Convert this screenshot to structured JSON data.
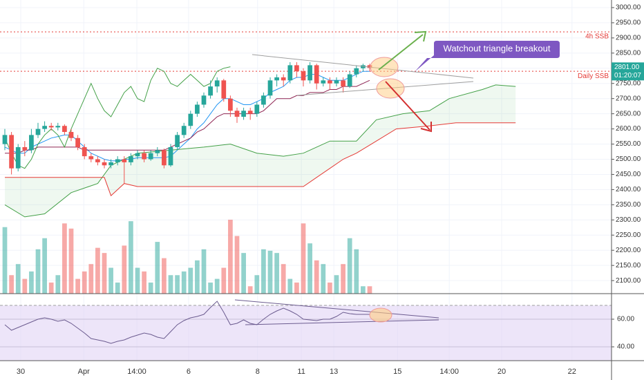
{
  "chart_data": [
    {
      "type": "candlestick",
      "up_color": "#26a69a",
      "down_color": "#ef5350",
      "xlim": [
        -0.73,
        91.46
      ],
      "xticks": [
        {
          "value": 2.4,
          "label": "30"
        },
        {
          "value": 11.9,
          "label": "Apr"
        },
        {
          "value": 19.9,
          "label": "14:00"
        },
        {
          "value": 27.7,
          "label": "6"
        },
        {
          "value": 38.1,
          "label": "8"
        },
        {
          "value": 44.7,
          "label": "11"
        },
        {
          "value": 49.6,
          "label": "13"
        },
        {
          "value": 59.2,
          "label": "15"
        },
        {
          "value": 67,
          "label": "14:00"
        },
        {
          "value": 74.9,
          "label": "20"
        },
        {
          "value": 85.5,
          "label": "22"
        }
      ],
      "ylim": [
        2057,
        3025
      ],
      "yticks": [
        {
          "value": 3000,
          "label": "3000.00"
        },
        {
          "value": 2950,
          "label": "2950.00"
        },
        {
          "value": 2900,
          "label": "2900.00"
        },
        {
          "value": 2850,
          "label": "2850.00"
        },
        {
          "value": 2800,
          "label": "2800.00"
        },
        {
          "value": 2750,
          "label": "2750.00"
        },
        {
          "value": 2700,
          "label": "2700.00"
        },
        {
          "value": 2650,
          "label": "2650.00"
        },
        {
          "value": 2600,
          "label": "2600.00"
        },
        {
          "value": 2550,
          "label": "2550.00"
        },
        {
          "value": 2500,
          "label": "2500.00"
        },
        {
          "value": 2450,
          "label": "2450.00"
        },
        {
          "value": 2400,
          "label": "2400.00"
        },
        {
          "value": 2350,
          "label": "2350.00"
        },
        {
          "value": 2300,
          "label": "2300.00"
        },
        {
          "value": 2250,
          "label": "2250.00"
        },
        {
          "value": 2200,
          "label": "2200.00"
        },
        {
          "value": 2150,
          "label": "2150.00"
        },
        {
          "value": 2100,
          "label": "2100.00"
        }
      ],
      "grid": true,
      "ohlc": [
        [
          2550,
          2600,
          2530,
          2580
        ],
        [
          2580,
          2590,
          2450,
          2470
        ],
        [
          2470,
          2550,
          2460,
          2540
        ],
        [
          2540,
          2560,
          2510,
          2530
        ],
        [
          2530,
          2600,
          2520,
          2580
        ],
        [
          2580,
          2620,
          2570,
          2600
        ],
        [
          2600,
          2625,
          2590,
          2610
        ],
        [
          2610,
          2620,
          2595,
          2605
        ],
        [
          2605,
          2620,
          2595,
          2610
        ],
        [
          2610,
          2615,
          2580,
          2590
        ],
        [
          2590,
          2600,
          2560,
          2570
        ],
        [
          2570,
          2580,
          2530,
          2540
        ],
        [
          2540,
          2550,
          2500,
          2510
        ],
        [
          2510,
          2520,
          2490,
          2500
        ],
        [
          2500,
          2510,
          2480,
          2490
        ],
        [
          2490,
          2500,
          2470,
          2480
        ],
        [
          2480,
          2500,
          2470,
          2490
        ],
        [
          2490,
          2510,
          2480,
          2500
        ],
        [
          2500,
          2510,
          2420,
          2490
        ],
        [
          2490,
          2520,
          2480,
          2510
        ],
        [
          2510,
          2530,
          2500,
          2520
        ],
        [
          2520,
          2530,
          2490,
          2500
        ],
        [
          2500,
          2530,
          2495,
          2520
        ],
        [
          2520,
          2540,
          2510,
          2530
        ],
        [
          2530,
          2535,
          2470,
          2480
        ],
        [
          2480,
          2550,
          2475,
          2540
        ],
        [
          2540,
          2590,
          2530,
          2580
        ],
        [
          2580,
          2620,
          2570,
          2610
        ],
        [
          2610,
          2660,
          2600,
          2650
        ],
        [
          2650,
          2690,
          2640,
          2680
        ],
        [
          2680,
          2720,
          2670,
          2710
        ],
        [
          2710,
          2760,
          2700,
          2740
        ],
        [
          2740,
          2770,
          2720,
          2760
        ],
        [
          2760,
          2765,
          2690,
          2700
        ],
        [
          2700,
          2710,
          2640,
          2660
        ],
        [
          2660,
          2670,
          2620,
          2640
        ],
        [
          2640,
          2670,
          2630,
          2660
        ],
        [
          2660,
          2670,
          2630,
          2650
        ],
        [
          2650,
          2690,
          2640,
          2680
        ],
        [
          2680,
          2720,
          2670,
          2710
        ],
        [
          2710,
          2770,
          2700,
          2760
        ],
        [
          2760,
          2780,
          2740,
          2770
        ],
        [
          2770,
          2780,
          2740,
          2760
        ],
        [
          2760,
          2820,
          2750,
          2810
        ],
        [
          2810,
          2820,
          2770,
          2790
        ],
        [
          2790,
          2800,
          2740,
          2760
        ],
        [
          2760,
          2820,
          2750,
          2810
        ],
        [
          2810,
          2815,
          2730,
          2750
        ],
        [
          2750,
          2770,
          2740,
          2760
        ],
        [
          2760,
          2770,
          2730,
          2750
        ],
        [
          2750,
          2770,
          2740,
          2760
        ],
        [
          2760,
          2770,
          2720,
          2740
        ],
        [
          2740,
          2790,
          2735,
          2780
        ],
        [
          2780,
          2810,
          2770,
          2800
        ],
        [
          2800,
          2815,
          2790,
          2810
        ],
        [
          2810,
          2815,
          2790,
          2801
        ]
      ],
      "volume": [
        90,
        25,
        40,
        20,
        30,
        60,
        75,
        15,
        25,
        95,
        88,
        20,
        30,
        40,
        62,
        55,
        35,
        15,
        65,
        98,
        35,
        30,
        15,
        70,
        48,
        25,
        25,
        30,
        35,
        45,
        60,
        15,
        20,
        35,
        100,
        78,
        55,
        10,
        25,
        60,
        58,
        55,
        40,
        20,
        15,
        95,
        68,
        45,
        40,
        15,
        25,
        40,
        75,
        60,
        10,
        10
      ],
      "volume_ylim": [
        0,
        100
      ],
      "series": [
        {
          "color": "#2196f3",
          "values": [
            2540,
            2530,
            2520,
            2520,
            2540,
            2550,
            2560,
            2570,
            2575,
            2580,
            2580,
            2560,
            2540,
            2520,
            2510,
            2500,
            2495,
            2495,
            2500,
            2500,
            2505,
            2505,
            2505,
            2505,
            2505,
            2510,
            2530,
            2550,
            2570,
            2600,
            2620,
            2650,
            2680,
            2700,
            2700,
            2690,
            2680,
            2680,
            2690,
            2700,
            2720,
            2730,
            2740,
            2760,
            2770,
            2770,
            2780,
            2780,
            2770,
            2760,
            2760,
            2760,
            2770,
            2780,
            2790,
            2790
          ]
        },
        {
          "color": "#8e2452",
          "values": [
            2520,
            2520,
            2520,
            2530,
            2530,
            2540,
            2540,
            2540,
            2540,
            2540,
            2540,
            2540,
            2530,
            2530,
            2530,
            2530,
            2530,
            2530,
            2530,
            2530,
            2530,
            2530,
            2530,
            2530,
            2530,
            2540,
            2550,
            2560,
            2570,
            2590,
            2600,
            2620,
            2640,
            2650,
            2650,
            2650,
            2650,
            2650,
            2650,
            2660,
            2680,
            2700,
            2700,
            2700,
            2710,
            2710,
            2720,
            2720,
            2720,
            2730,
            2730,
            2740,
            2740,
            2740,
            2750,
            2760
          ]
        },
        {
          "color": "#43a047",
          "values": [
            2570,
            2520,
            2480,
            2470,
            2500,
            2550,
            2580,
            2600,
            2580,
            2540,
            2600,
            2650,
            2700,
            2750,
            2700,
            2660,
            2640,
            2680,
            2720,
            2740,
            2700,
            2690,
            2760,
            2800,
            2790,
            2750,
            2740,
            2760,
            2780,
            2760,
            2740,
            2750,
            2790,
            2800,
            2805
          ]
        },
        {
          "color": "#43a047",
          "x": [
            0,
            3,
            6,
            10,
            14,
            16,
            20,
            25,
            30,
            34,
            38,
            42,
            45,
            47,
            49,
            53,
            56,
            60,
            64,
            67,
            72,
            74,
            77
          ],
          "values": [
            2350,
            2310,
            2320,
            2390,
            2420,
            2480,
            2520,
            2530,
            2540,
            2550,
            2520,
            2510,
            2520,
            2540,
            2560,
            2560,
            2630,
            2650,
            2660,
            2700,
            2730,
            2745,
            2740
          ]
        },
        {
          "color": "#e53935",
          "x": [
            0,
            15,
            16,
            18,
            20,
            30,
            45,
            47,
            49,
            51,
            53,
            56,
            59,
            64,
            68,
            77
          ],
          "values": [
            2440,
            2440,
            2380,
            2420,
            2410,
            2410,
            2410,
            2440,
            2470,
            2500,
            2520,
            2560,
            2600,
            2610,
            2620,
            2620
          ]
        }
      ],
      "levels": [
        {
          "label": "4h SSB",
          "value": 2920,
          "color": "#e53935"
        },
        {
          "label": "Daily SSB",
          "value": 2790,
          "color": "#e53935"
        }
      ],
      "last_price": {
        "value": 2801,
        "label": "2801.00"
      },
      "countdown": "01:20:07",
      "annotation": "Watchout triangle breakout"
    },
    {
      "type": "line",
      "color": "#6b5b8f",
      "values": [
        56,
        52,
        54,
        56,
        58,
        60,
        61,
        60,
        58.5,
        59.5,
        57,
        53.5,
        50,
        46,
        45,
        44,
        42.5,
        44,
        45,
        47,
        48.5,
        50,
        49,
        47,
        46,
        51,
        56,
        59,
        61,
        62,
        63.5,
        68.5,
        73,
        65,
        56,
        57,
        59.5,
        57,
        56,
        60,
        63.5,
        66,
        68,
        66,
        63.5,
        60,
        59.5,
        59,
        60,
        60,
        62,
        65,
        64,
        63.5,
        63.5,
        63.5
      ],
      "ylim": [
        30,
        78.5
      ],
      "yticks": [
        {
          "value": 60,
          "label": "60.00"
        },
        {
          "value": 40,
          "label": "40.00"
        }
      ],
      "bands": [
        30,
        70
      ],
      "band_color": "#e1d4f5"
    }
  ]
}
